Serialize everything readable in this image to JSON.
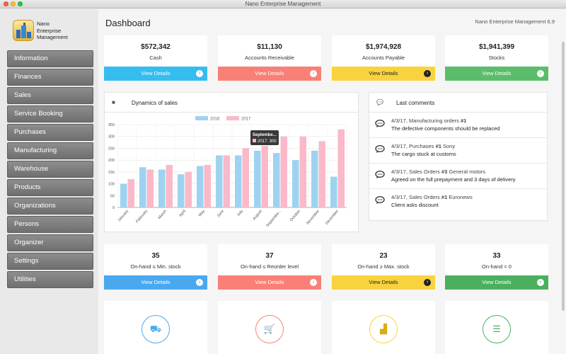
{
  "window": {
    "title": "Nano Enterprise Management"
  },
  "app": {
    "name": "Nano Enterprise Management",
    "version": "Nano Enterprise Management 6.9"
  },
  "sidebar": {
    "logo_line1": "Nano",
    "logo_line2": "Enterprise",
    "logo_line3": "Management",
    "items": [
      {
        "label": "Information"
      },
      {
        "label": "Finances"
      },
      {
        "label": "Sales"
      },
      {
        "label": "Service Booking"
      },
      {
        "label": "Purchases"
      },
      {
        "label": "Manufacturing"
      },
      {
        "label": "Warehouse"
      },
      {
        "label": "Products"
      },
      {
        "label": "Organizations"
      },
      {
        "label": "Persons"
      },
      {
        "label": "Organizer"
      },
      {
        "label": "Settings"
      },
      {
        "label": "Utilities"
      }
    ]
  },
  "header": {
    "title": "Dashboard"
  },
  "summary_cards": [
    {
      "value": "$572,342",
      "label": "Cash",
      "button": "View Details",
      "color": "#35bdf0"
    },
    {
      "value": "$11,130",
      "label": "Accounts Receivable",
      "button": "View Details",
      "color": "#f98077"
    },
    {
      "value": "$1,974,928",
      "label": "Accounts Payable",
      "button": "View Details",
      "color": "#f9d33e"
    },
    {
      "value": "$1,941,399",
      "label": "Stocks",
      "button": "View Details",
      "color": "#5bbd6b"
    }
  ],
  "sales_panel": {
    "title": "Dynamics of sales",
    "tooltip_title": "Septembe...",
    "tooltip_value": "2017: 300"
  },
  "chart_data": {
    "type": "bar",
    "categories": [
      "January",
      "February",
      "March",
      "April",
      "May",
      "June",
      "July",
      "August",
      "Septembe...",
      "October",
      "November",
      "December"
    ],
    "series": [
      {
        "name": "2016",
        "values": [
          100,
          170,
          160,
          140,
          175,
          220,
          220,
          240,
          230,
          200,
          240,
          130
        ],
        "color": "#9dd3f0"
      },
      {
        "name": "2017",
        "values": [
          120,
          160,
          180,
          150,
          180,
          220,
          250,
          260,
          300,
          300,
          280,
          330
        ],
        "color": "#f9b9c8"
      }
    ],
    "ylim": [
      0,
      350
    ],
    "yticks": [
      0,
      50,
      100,
      150,
      200,
      250,
      300,
      350
    ],
    "grid": true,
    "legend": "top-center"
  },
  "comments_panel": {
    "title": "Last comments",
    "items": [
      {
        "date": "4/3/17,",
        "source": "Manufacturing orders",
        "num": "#1",
        "extra": "",
        "text": "The defective components should be replaced"
      },
      {
        "date": "4/3/17,",
        "source": "Purchases",
        "num": "#1",
        "extra": "Sony",
        "text": "The cargo stuck at customs"
      },
      {
        "date": "4/3/17,",
        "source": "Sales Orders",
        "num": "#3",
        "extra": "General motors",
        "text": "Agreed on the full prepayment and 3 days of delivery"
      },
      {
        "date": "4/3/17,",
        "source": "Sales Orders",
        "num": "#1",
        "extra": "Euronews",
        "text": "Client asks discount"
      }
    ]
  },
  "stock_cards": [
    {
      "value": "35",
      "label": "On-hand ≤ Min. stock",
      "button": "View Details",
      "color": "#4aa8ef"
    },
    {
      "value": "37",
      "label": "On-hand ≤ Reorder level",
      "button": "View Details",
      "color": "#f98077"
    },
    {
      "value": "23",
      "label": "On-hand ≥ Max. stock",
      "button": "View Details",
      "color": "#f9d33e"
    },
    {
      "value": "33",
      "label": "On-hand = 0",
      "button": "View Details",
      "color": "#4bb05e"
    }
  ],
  "bottom_icons": [
    {
      "icon": "truck-icon",
      "color": "#4aa8ef"
    },
    {
      "icon": "cart-icon",
      "color": "#f98077"
    },
    {
      "icon": "factory-icon",
      "color": "#f9d33e"
    },
    {
      "icon": "server-icon",
      "color": "#4bb05e"
    }
  ]
}
